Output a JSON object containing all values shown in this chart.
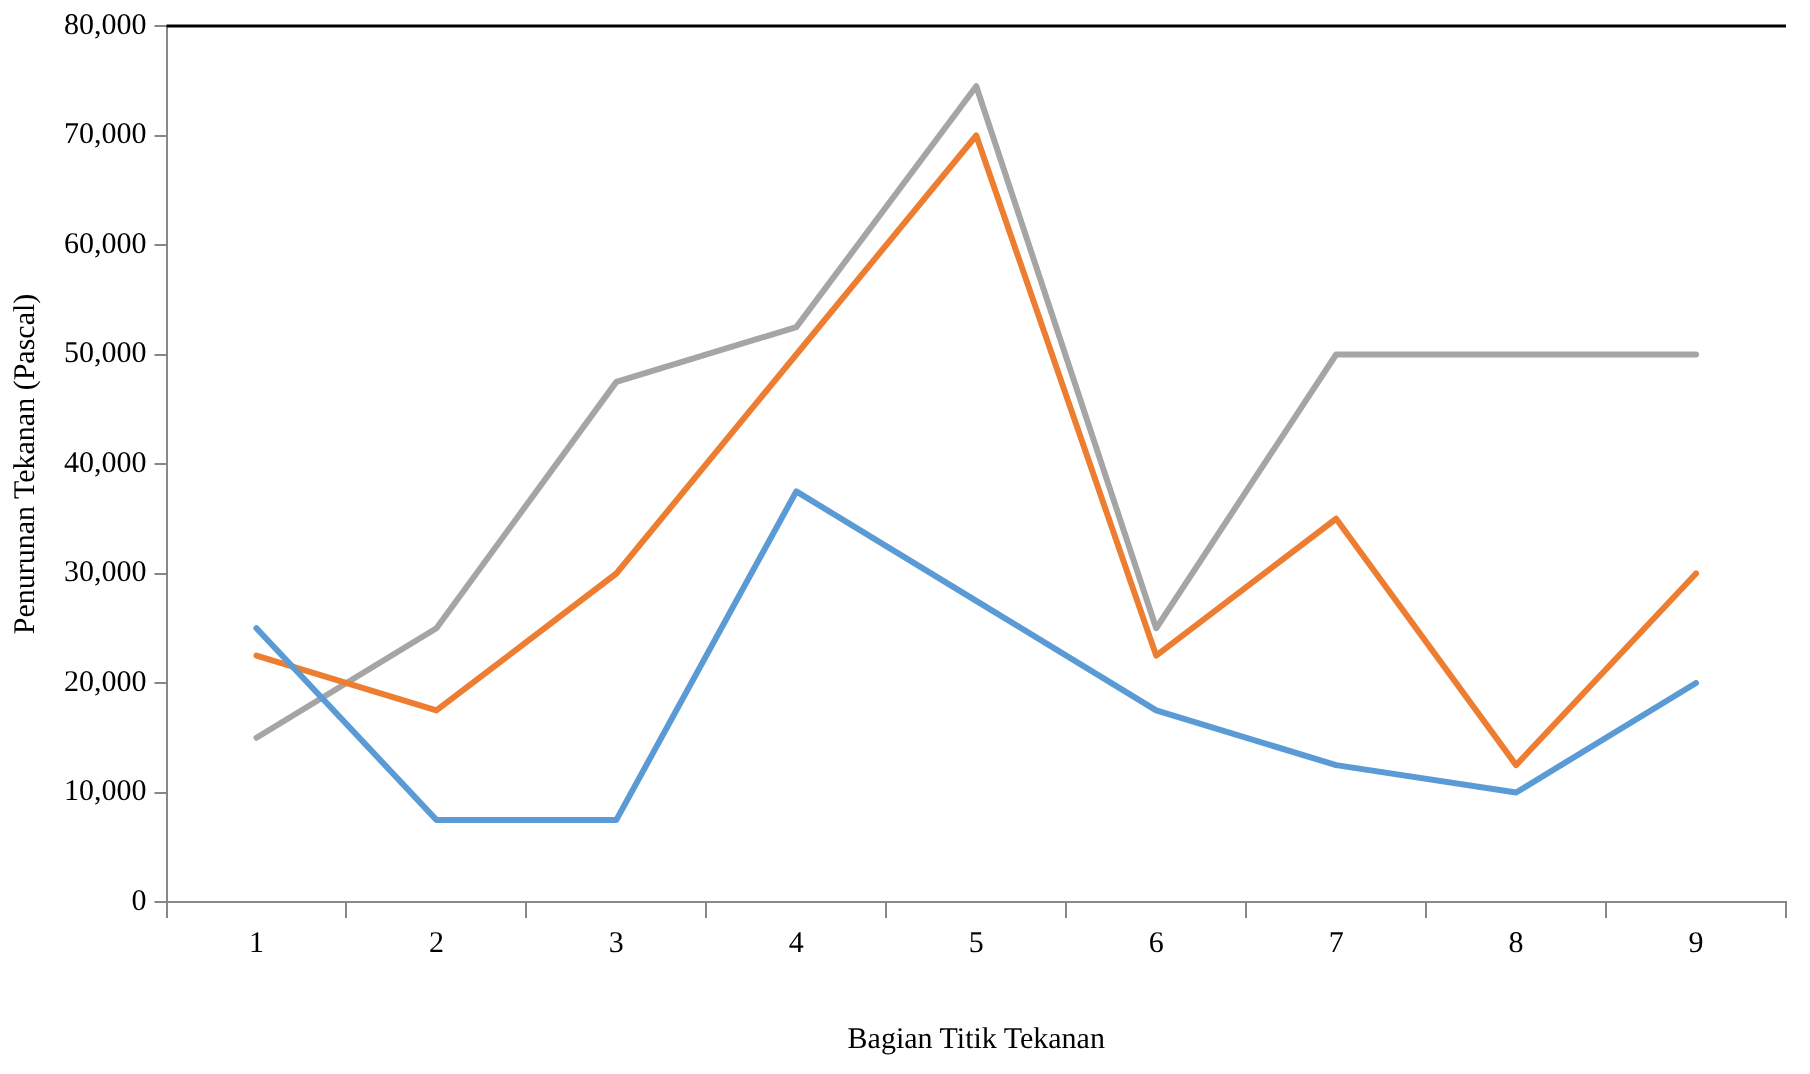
{
  "chart_data": {
    "type": "line",
    "xlabel": "Bagian Titik Tekanan",
    "ylabel": "Penurunan Tekanan (Pascal)",
    "categories": [
      "1",
      "2",
      "3",
      "4",
      "5",
      "6",
      "7",
      "8",
      "9"
    ],
    "series": [
      {
        "color": "#5b9bd5",
        "values": [
          25000,
          7500,
          7500,
          37500,
          27500,
          17500,
          12500,
          10000,
          20000
        ]
      },
      {
        "color": "#ed7d31",
        "values": [
          22500,
          17500,
          30000,
          50000,
          70000,
          22500,
          35000,
          12500,
          30000
        ]
      },
      {
        "color": "#a5a5a5",
        "values": [
          15000,
          25000,
          47500,
          52500,
          74500,
          25000,
          50000,
          50000,
          50000
        ]
      }
    ],
    "ylim": [
      0,
      80000
    ],
    "yticks": [
      {
        "value": 0,
        "label": "0"
      },
      {
        "value": 10000,
        "label": "10,000"
      },
      {
        "value": 20000,
        "label": "20,000"
      },
      {
        "value": 30000,
        "label": "30,000"
      },
      {
        "value": 40000,
        "label": "40,000"
      },
      {
        "value": 50000,
        "label": "50,000"
      },
      {
        "value": 60000,
        "label": "60,000"
      },
      {
        "value": 70000,
        "label": "70,000"
      },
      {
        "value": 80000,
        "label": "80,000"
      }
    ],
    "grid": false,
    "legend": false,
    "marker": "none",
    "line_style": "solid"
  }
}
